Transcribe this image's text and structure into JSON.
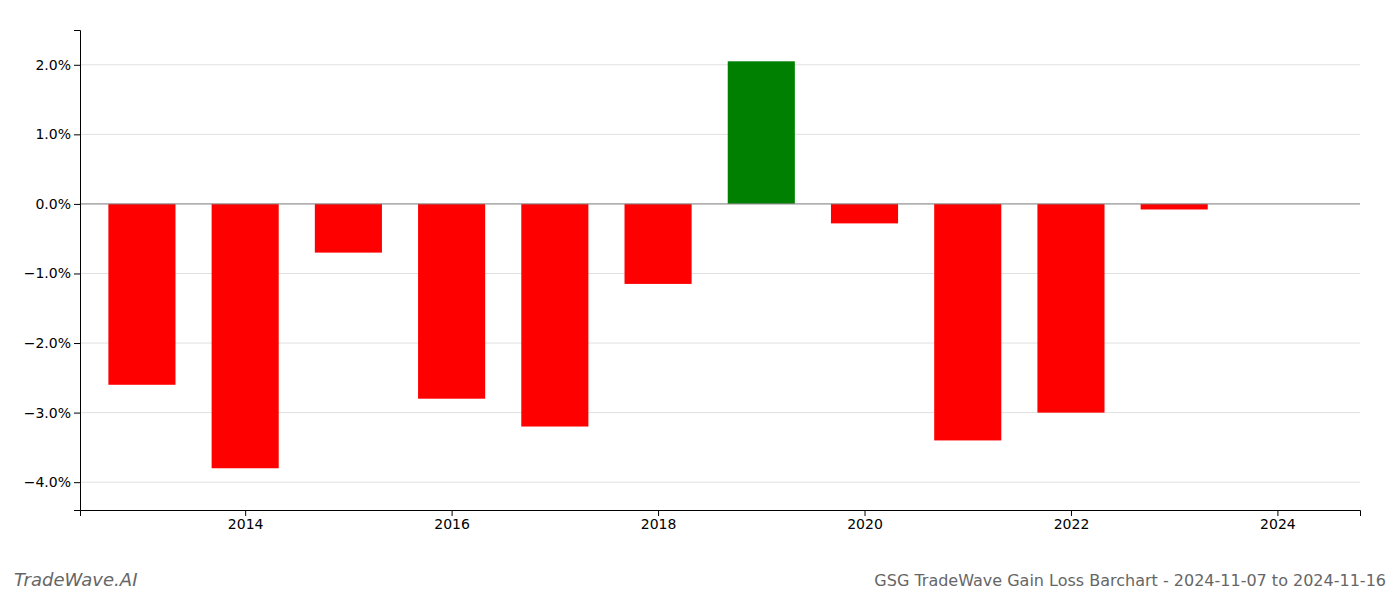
{
  "chart_data": {
    "type": "bar",
    "title": "GSG TradeWave Gain Loss Barchart - 2024-11-07 to 2024-11-16",
    "annotations": [
      "TradeWave.AI"
    ],
    "x": [
      2013,
      2014,
      2015,
      2016,
      2017,
      2018,
      2019,
      2020,
      2021,
      2022,
      2023,
      2024
    ],
    "values": [
      -2.6,
      -3.8,
      -0.7,
      -2.8,
      -3.2,
      -1.15,
      2.05,
      -0.28,
      -3.4,
      -3.0,
      -0.08,
      0.0
    ],
    "colors": [
      "red",
      "red",
      "red",
      "red",
      "red",
      "red",
      "green",
      "red",
      "red",
      "red",
      "red",
      "red"
    ],
    "xlim": [
      2012.4,
      2024.8
    ],
    "xticks": [
      2014,
      2016,
      2018,
      2020,
      2022,
      2024
    ],
    "ylim": [
      -4.4,
      2.5
    ],
    "yticks": [
      {
        "value": -4.0,
        "label": "−4.0%"
      },
      {
        "value": -3.0,
        "label": "−3.0%"
      },
      {
        "value": -2.0,
        "label": "−2.0%"
      },
      {
        "value": -1.0,
        "label": "−1.0%"
      },
      {
        "value": 0.0,
        "label": "0.0%"
      },
      {
        "value": 1.0,
        "label": "1.0%"
      },
      {
        "value": 2.0,
        "label": "2.0%"
      }
    ],
    "grid": true
  }
}
